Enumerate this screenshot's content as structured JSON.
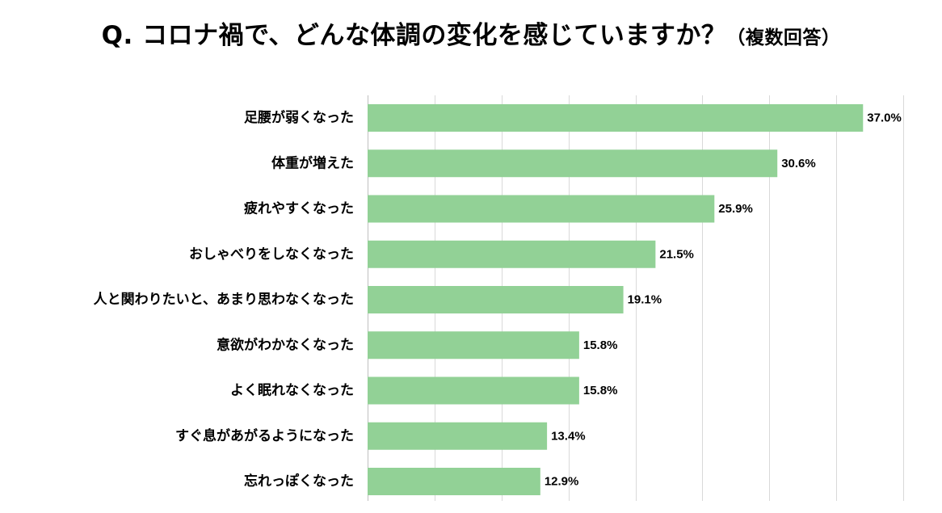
{
  "title": {
    "main": "Q. コロナ禍で、どんな体調の変化を感じていますか？",
    "sub": "（複数回答）"
  },
  "colors": {
    "bar": "#92d196",
    "grid": "#d9d9d9",
    "axis": "#bfbfbf",
    "text": "#000000"
  },
  "chart_data": {
    "type": "bar",
    "orientation": "horizontal",
    "categories": [
      "足腰が弱くなった",
      "体重が増えた",
      "疲れやすくなった",
      "おしゃべりをしなくなった",
      "人と関わりたいと、あまり思わなくなった",
      "意欲がわかなくなった",
      "よく眠れなくなった",
      "すぐ息があがるようになった",
      "忘れっぽくなった"
    ],
    "values": [
      37.0,
      30.6,
      25.9,
      21.5,
      19.1,
      15.8,
      15.8,
      13.4,
      12.9
    ],
    "value_labels": [
      "37.0%",
      "30.6%",
      "25.9%",
      "21.5%",
      "19.1%",
      "15.8%",
      "15.8%",
      "13.4%",
      "12.9%"
    ],
    "xlim": [
      0,
      40
    ],
    "grid_step": 5,
    "grid": true,
    "legend": "none"
  }
}
